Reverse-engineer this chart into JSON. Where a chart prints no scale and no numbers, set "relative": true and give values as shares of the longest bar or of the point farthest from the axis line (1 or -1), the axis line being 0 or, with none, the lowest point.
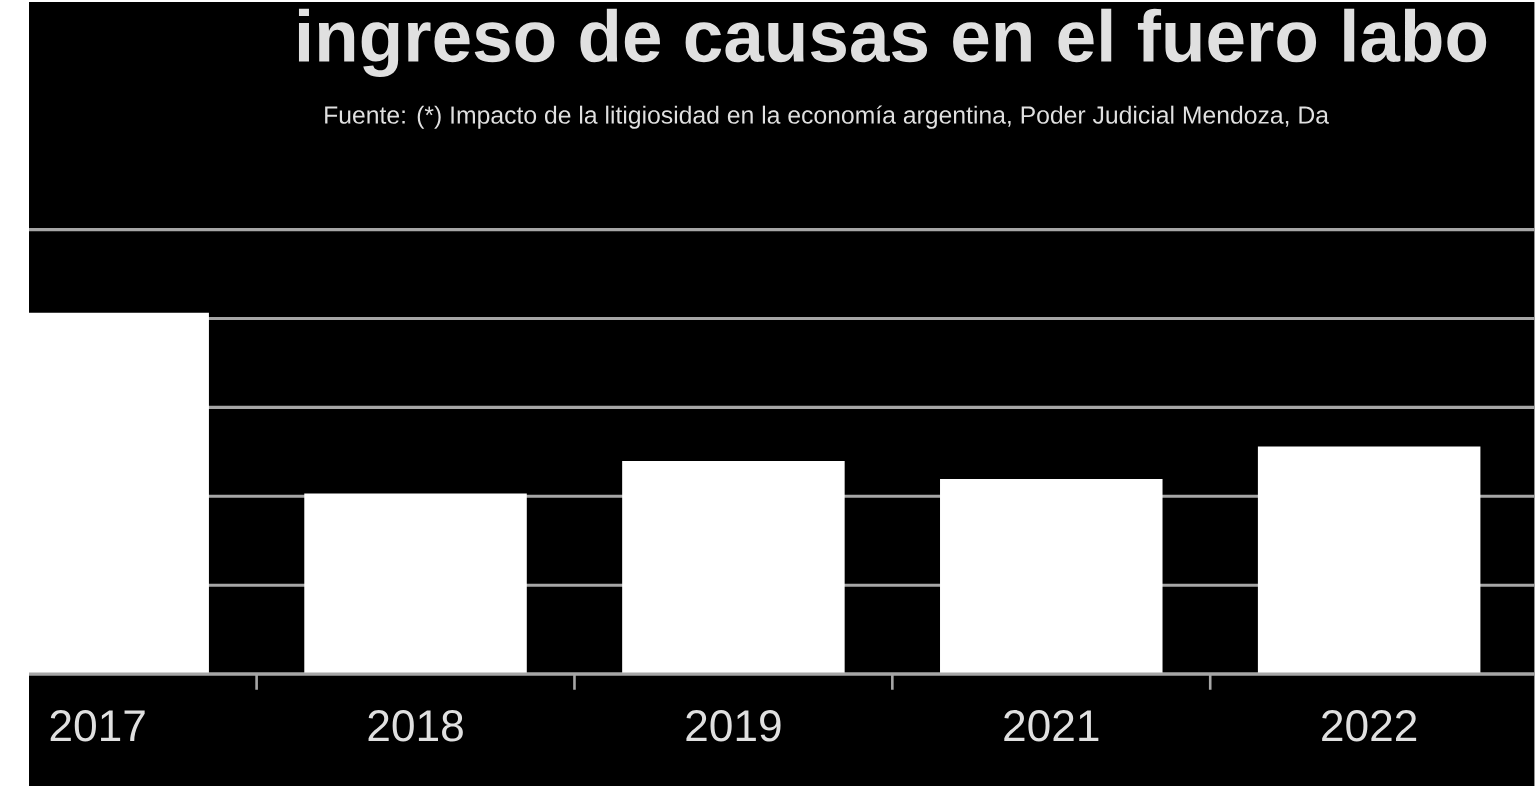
{
  "chart_data": {
    "type": "bar",
    "title": "ingreso de causas en el fuero labo",
    "subtitle": "Fuente: (*) Impacto de la litigiosidad en la economía argentina, Poder Judicial Mendoza, Da",
    "categories": [
      "2017",
      "2018",
      "2019",
      "2021",
      "2022"
    ],
    "values": [
      1,
      0.5,
      0.59,
      0.54,
      0.63
    ],
    "color": "#ffffff",
    "relative": true,
    "grid": "y"
  }
}
